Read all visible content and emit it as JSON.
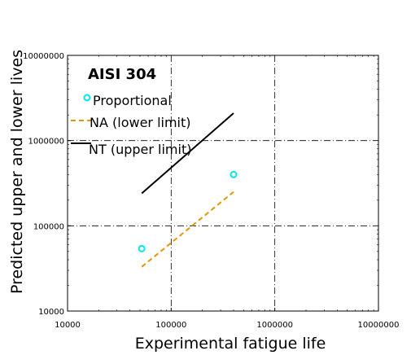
{
  "chart_data": {
    "type": "scatter",
    "xlabel": "Experimental fatigue life",
    "ylabel": "Predicted upper and lower lives",
    "xscale": "log",
    "yscale": "log",
    "xlim": [
      10000,
      10000000
    ],
    "ylim": [
      10000,
      10000000
    ],
    "x_ticks": [
      "10000",
      "100000",
      "1000000",
      "10000000"
    ],
    "y_ticks": [
      "10000",
      "100000",
      "1000000",
      "10000000"
    ],
    "grid": true,
    "legend": {
      "title": "AISI 304",
      "placement": "top-left"
    },
    "series": [
      {
        "name": "Proportional",
        "kind": "scatter",
        "marker": "circle",
        "color": "#00e5e5",
        "points": [
          {
            "x": 52000,
            "y": 54000
          },
          {
            "x": 400000,
            "y": 400000
          }
        ]
      },
      {
        "name": "NA (lower limit)",
        "kind": "line",
        "style": "dashed",
        "color": "#e69500",
        "points": [
          {
            "x": 52000,
            "y": 33000
          },
          {
            "x": 400000,
            "y": 250000
          }
        ]
      },
      {
        "name": "NT (upper limit)",
        "kind": "line",
        "style": "solid",
        "color": "#000000",
        "points": [
          {
            "x": 52000,
            "y": 240000
          },
          {
            "x": 400000,
            "y": 2100000
          }
        ]
      }
    ]
  }
}
